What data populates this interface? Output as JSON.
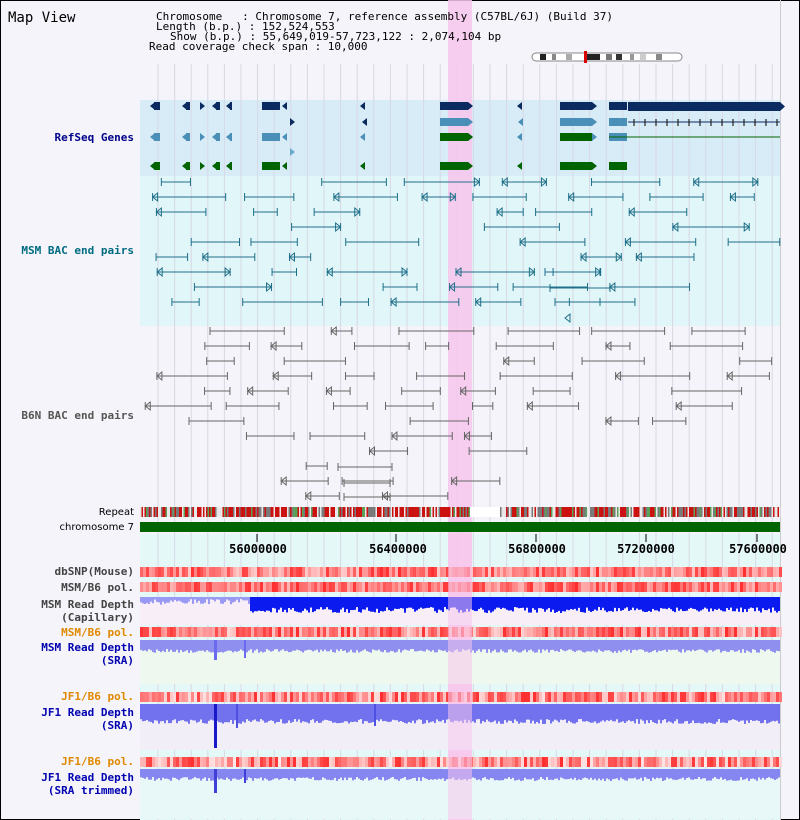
{
  "view_title": "Map View",
  "info": {
    "chromosome_line": "Chromosome   : Chromosome 7, reference assembly (C57BL/6J) (Build 37)",
    "length_line": "Length (b.p.) : 152,524,553",
    "show_line": "Show (b.p.) : 55,649,019-57,723,122 : 2,074,104 bp",
    "coverage_line": "Read coverage check span : 10,000"
  },
  "tracks": {
    "refseq": "RefSeq Genes",
    "msm_bac": "MSM BAC end pairs",
    "b6n_bac": "B6N BAC end pairs",
    "repeat": "Repeat",
    "chromosome": "chromosome 7",
    "dbsnp": "dbSNP(Mouse)",
    "msm_b6_pol_1": "MSM/B6 pol.",
    "msm_read_depth_cap_1": "MSM Read Depth",
    "msm_read_depth_cap_2": "(Capillary)",
    "msm_b6_pol_2": "MSM/B6 pol.",
    "msm_read_depth_sra_1": "MSM Read Depth",
    "msm_read_depth_sra_2": "(SRA)",
    "jf1_b6_pol": "JF1/B6 pol.",
    "jf1_read_depth_sra_1": "JF1 Read Depth",
    "jf1_read_depth_sra_2": "(SRA)",
    "jf1_b6_pol_2": "JF1/B6 pol.",
    "jf1_read_depth_tr_1": "JF1 Read Depth",
    "jf1_read_depth_tr_2": "(SRA trimmed)"
  },
  "axis_ticks": [
    "56000000",
    "56400000",
    "56800000",
    "57200000",
    "57600000"
  ],
  "colors": {
    "refseq_label": "#00008b",
    "msm_label": "#006b80",
    "b6n_label": "#555555",
    "orange_label": "#e08800",
    "blue_label": "#0000b0",
    "highlight": "#f7c6ec",
    "gene_navy": "#0a2a60",
    "gene_steel": "#4a8fb8",
    "gene_green": "#006400",
    "bac_teal": "#1f6f8a",
    "bac_gray": "#666666",
    "chrom_green": "#006400",
    "read_blue": "#0b1bf0",
    "read_light": "#7a7af0"
  }
}
